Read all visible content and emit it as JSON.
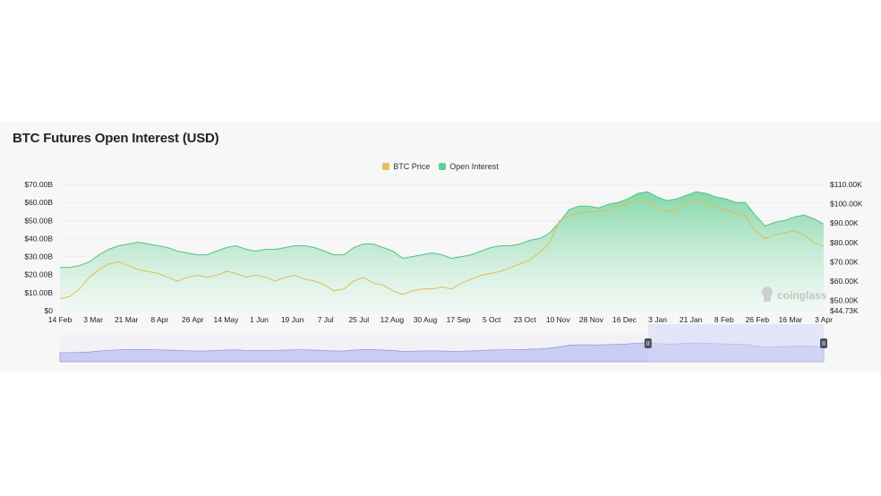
{
  "title": "BTC Futures Open Interest (USD)",
  "legend": [
    {
      "label": "BTC Price",
      "color": "#e3c25a"
    },
    {
      "label": "Open Interest",
      "color": "#5fce96"
    }
  ],
  "watermark": "coinglass",
  "colors": {
    "price_line": "#e0bc52",
    "oi_line": "#52c284",
    "oi_fill_top": "#7fd6a5",
    "oi_fill_bottom": "#eef9f2",
    "navigator_fill": "#c9cdf2",
    "navigator_line": "#8f96d8",
    "navigator_window": "#d6d9f7",
    "handle": "#4a4f5c"
  },
  "chart_data": {
    "type": "area",
    "x_ticks": [
      "14 Feb",
      "3 Mar",
      "21 Mar",
      "8 Apr",
      "26 Apr",
      "14 May",
      "1 Jun",
      "19 Jun",
      "7 Jul",
      "25 Jul",
      "12 Aug",
      "30 Aug",
      "17 Sep",
      "5 Oct",
      "23 Oct",
      "10 Nov",
      "28 Nov",
      "16 Dec",
      "3 Jan",
      "21 Jan",
      "8 Feb",
      "26 Feb",
      "16 Mar",
      "3 Apr"
    ],
    "y_left_ticks": [
      "$0",
      "$10.00B",
      "$20.00B",
      "$30.00B",
      "$40.00B",
      "$50.00B",
      "$60.00B",
      "$70.00B"
    ],
    "y_left_range": [
      0,
      70
    ],
    "y_left_unit": "B USD",
    "y_right_ticks": [
      "$44.73K",
      "$50.00K",
      "$60.00K",
      "$70.00K",
      "$80.00K",
      "$90.00K",
      "$100.00K",
      "$110.00K"
    ],
    "y_right_tick_values": [
      44.73,
      50,
      60,
      70,
      80,
      90,
      100,
      110
    ],
    "y_right_range": [
      44.73,
      110
    ],
    "y_right_unit": "K USD",
    "grid": true,
    "legend_position": "top-center",
    "navigator_window": [
      0.77,
      1.0
    ],
    "series": [
      {
        "name": "Open Interest",
        "axis": "left",
        "values": [
          24,
          24,
          25,
          27,
          31,
          34,
          36,
          37,
          38,
          37,
          36,
          35,
          33,
          32,
          31,
          31,
          33,
          35,
          36,
          34,
          33,
          34,
          34,
          35,
          36,
          36,
          35,
          33,
          31,
          31,
          35,
          37,
          37,
          35,
          33,
          29,
          30,
          31,
          32,
          31,
          29,
          30,
          31,
          33,
          35,
          36,
          36,
          37,
          39,
          40,
          43,
          49,
          56,
          58,
          58,
          57,
          59,
          60,
          62,
          65,
          66,
          63,
          61,
          62,
          64,
          66,
          65,
          63,
          62,
          60,
          60,
          53,
          47,
          49,
          50,
          52,
          53,
          51,
          48
        ]
      },
      {
        "name": "BTC Price",
        "axis": "right",
        "values": [
          51,
          52,
          56,
          62,
          66,
          69,
          70,
          68,
          66,
          65,
          64,
          62,
          60,
          62,
          63,
          62,
          63,
          65,
          64,
          62,
          63,
          62,
          60,
          62,
          63,
          61,
          60,
          58,
          55,
          56,
          60,
          62,
          59,
          58,
          55,
          53,
          55,
          56,
          56,
          57,
          56,
          59,
          61,
          63,
          64,
          65,
          67,
          69,
          71,
          75,
          80,
          91,
          94,
          95,
          96,
          96,
          97,
          99,
          100,
          102,
          101,
          98,
          96,
          97,
          100,
          102,
          100,
          98,
          97,
          95,
          94,
          86,
          82,
          84,
          85,
          86,
          84,
          80,
          78
        ]
      }
    ]
  }
}
